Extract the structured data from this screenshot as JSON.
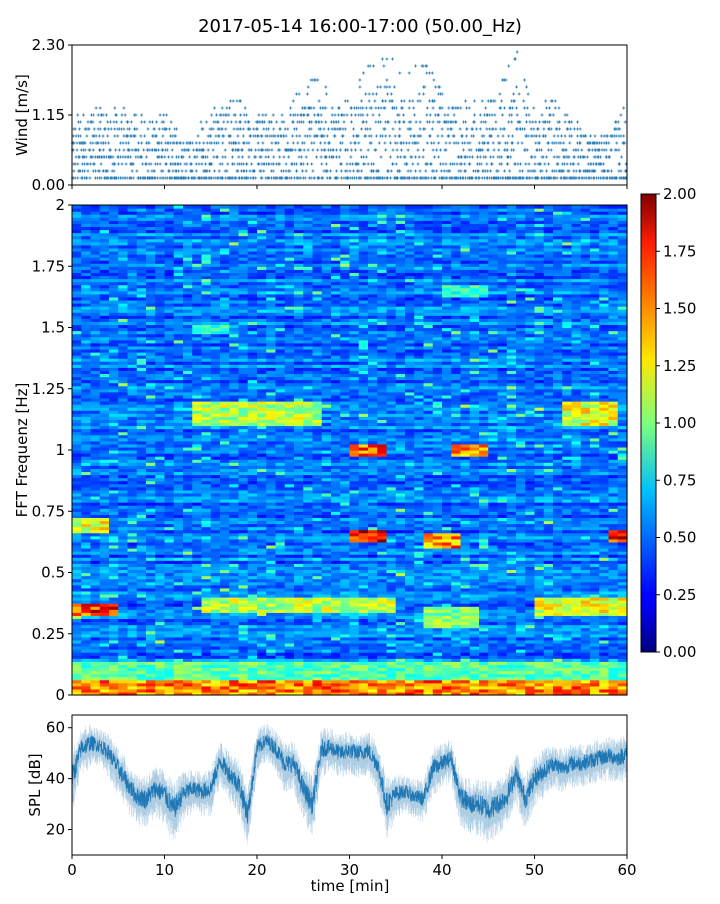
{
  "figure_title": "2017-05-14 16:00-17:00 (50.00_Hz)",
  "chart_data": [
    {
      "type": "scatter",
      "name": "wind-panel",
      "ylabel": "Wind [m/s]",
      "xlim": [
        0,
        60
      ],
      "ylim": [
        0,
        2.3
      ],
      "yticks": [
        0,
        1.15,
        2.3
      ],
      "ytick_labels": [
        "0.00",
        "1.15",
        "2.30"
      ],
      "color": "#1f77b4",
      "marker": "+",
      "samples_per_minute": 60,
      "quantization_step": 0.115,
      "profile": {
        "t": [
          0,
          2,
          4,
          6,
          8,
          10,
          12,
          14,
          16,
          18,
          20,
          22,
          24,
          26,
          28,
          30,
          32,
          34,
          36,
          38,
          40,
          42,
          44,
          46,
          48,
          50,
          52,
          54,
          56,
          58,
          60
        ],
        "mean": [
          0.45,
          0.55,
          0.5,
          0.55,
          0.4,
          0.5,
          0.2,
          0.35,
          0.55,
          0.55,
          0.55,
          0.5,
          0.55,
          0.55,
          0.6,
          0.6,
          0.6,
          0.75,
          0.6,
          0.7,
          0.6,
          0.45,
          0.5,
          0.6,
          0.55,
          0.55,
          0.5,
          0.45,
          0.4,
          0.4,
          0.45
        ],
        "max": [
          1.1,
          1.25,
          1.3,
          1.35,
          1.05,
          1.35,
          0.7,
          1.05,
          1.35,
          1.45,
          1.15,
          1.2,
          1.5,
          1.75,
          1.55,
          1.55,
          2.0,
          2.15,
          1.85,
          2.05,
          1.55,
          1.3,
          1.4,
          1.5,
          2.3,
          1.25,
          1.45,
          1.1,
          0.9,
          0.8,
          1.5
        ]
      }
    },
    {
      "type": "heatmap",
      "name": "spectrogram",
      "ylabel": "FFT Frequenz [Hz]",
      "xlim": [
        0,
        60
      ],
      "ylim": [
        0,
        2
      ],
      "yticks": [
        0,
        0.25,
        0.5,
        0.75,
        1,
        1.25,
        1.5,
        1.75,
        2
      ],
      "ytick_labels": [
        "0",
        "0.25",
        "0.5",
        "0.75",
        "1",
        "1.25",
        "1.5",
        "1.75",
        "2"
      ],
      "colormap": "jet",
      "clim": [
        0,
        2
      ],
      "colorbar_ticks": [
        "0.00",
        "0.25",
        "0.50",
        "0.75",
        "1.00",
        "1.25",
        "1.50",
        "1.75",
        "2.00"
      ],
      "time_bins": 60,
      "freq_bins": 160,
      "hotspots": [
        {
          "t0": 0,
          "t1": 60,
          "f0": 0,
          "f1": 0.06,
          "level": 1.6
        },
        {
          "t0": 0,
          "t1": 60,
          "f0": 0.06,
          "f1": 0.14,
          "level": 1.0
        },
        {
          "t0": 0,
          "t1": 5,
          "f0": 0.32,
          "f1": 0.37,
          "level": 1.8
        },
        {
          "t0": 14,
          "t1": 35,
          "f0": 0.34,
          "f1": 0.4,
          "level": 1.2
        },
        {
          "t0": 38,
          "t1": 44,
          "f0": 0.28,
          "f1": 0.36,
          "level": 1.1
        },
        {
          "t0": 50,
          "t1": 60,
          "f0": 0.33,
          "f1": 0.4,
          "level": 1.3
        },
        {
          "t0": 30,
          "t1": 34,
          "f0": 0.62,
          "f1": 0.68,
          "level": 1.9
        },
        {
          "t0": 38,
          "t1": 42,
          "f0": 0.6,
          "f1": 0.66,
          "level": 1.6
        },
        {
          "t0": 58,
          "t1": 60,
          "f0": 0.62,
          "f1": 0.68,
          "level": 1.9
        },
        {
          "t0": 0,
          "t1": 4,
          "f0": 0.66,
          "f1": 0.72,
          "level": 1.3
        },
        {
          "t0": 30,
          "t1": 34,
          "f0": 0.98,
          "f1": 1.03,
          "level": 1.7
        },
        {
          "t0": 41,
          "t1": 45,
          "f0": 0.98,
          "f1": 1.02,
          "level": 1.6
        },
        {
          "t0": 13,
          "t1": 27,
          "f0": 1.1,
          "f1": 1.2,
          "level": 1.2
        },
        {
          "t0": 53,
          "t1": 59,
          "f0": 1.1,
          "f1": 1.2,
          "level": 1.3
        },
        {
          "t0": 40,
          "t1": 45,
          "f0": 1.63,
          "f1": 1.67,
          "level": 0.9
        },
        {
          "t0": 13,
          "t1": 17,
          "f0": 1.47,
          "f1": 1.51,
          "level": 0.9
        }
      ]
    },
    {
      "type": "line",
      "name": "spl-panel",
      "xlabel": "time [min]",
      "ylabel": "SPL [dB]",
      "xlim": [
        0,
        60
      ],
      "ylim": [
        10,
        65
      ],
      "xticks": [
        0,
        10,
        20,
        30,
        40,
        50,
        60
      ],
      "xtick_labels": [
        "0",
        "10",
        "20",
        "30",
        "40",
        "50",
        "60"
      ],
      "yticks": [
        20,
        40,
        60
      ],
      "ytick_labels": [
        "20",
        "40",
        "60"
      ],
      "color": "#1f77b4",
      "envelope": {
        "t": [
          0,
          1,
          2,
          3,
          4,
          5,
          6,
          7,
          8,
          9,
          10,
          11,
          12,
          13,
          14,
          15,
          16,
          17,
          18,
          19,
          20,
          21,
          22,
          23,
          24,
          25,
          26,
          27,
          28,
          29,
          30,
          31,
          32,
          33,
          34,
          35,
          36,
          37,
          38,
          39,
          40,
          41,
          42,
          43,
          44,
          45,
          46,
          47,
          48,
          49,
          50,
          51,
          52,
          53,
          54,
          55,
          56,
          57,
          58,
          59,
          60
        ],
        "center": [
          40,
          52,
          54,
          53,
          50,
          44,
          38,
          33,
          32,
          36,
          34,
          28,
          34,
          36,
          35,
          36,
          47,
          42,
          38,
          26,
          52,
          55,
          52,
          46,
          46,
          36,
          30,
          52,
          52,
          50,
          51,
          50,
          51,
          46,
          30,
          34,
          35,
          33,
          32,
          44,
          46,
          48,
          33,
          30,
          30,
          28,
          30,
          33,
          42,
          32,
          40,
          43,
          46,
          44,
          46,
          46,
          47,
          48,
          49,
          48,
          50
        ],
        "spread": [
          10,
          8,
          7,
          6,
          7,
          8,
          8,
          8,
          9,
          8,
          9,
          10,
          8,
          7,
          7,
          8,
          7,
          8,
          9,
          10,
          7,
          6,
          7,
          8,
          8,
          9,
          10,
          8,
          7,
          7,
          7,
          7,
          7,
          8,
          10,
          7,
          6,
          6,
          7,
          8,
          7,
          7,
          9,
          9,
          9,
          10,
          9,
          9,
          8,
          9,
          8,
          8,
          7,
          7,
          7,
          7,
          7,
          7,
          7,
          7,
          8
        ]
      }
    }
  ]
}
